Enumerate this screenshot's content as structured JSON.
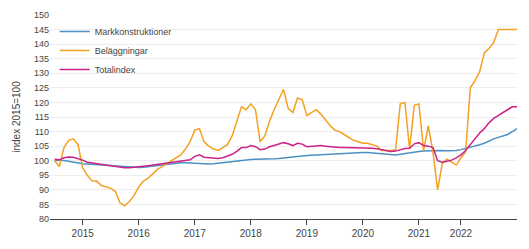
{
  "chart_data": {
    "type": "line",
    "ylabel": "index 2015=100",
    "ylim": [
      80,
      150
    ],
    "yticks": [
      80,
      85,
      90,
      95,
      100,
      105,
      110,
      115,
      120,
      125,
      130,
      135,
      140,
      145,
      150
    ],
    "grid": true,
    "legend": "upper left",
    "categories": [
      null,
      null,
      null,
      null,
      null,
      null,
      "2015",
      null,
      null,
      null,
      null,
      null,
      null,
      null,
      null,
      null,
      null,
      null,
      "2016",
      null,
      null,
      null,
      null,
      null,
      null,
      null,
      null,
      null,
      null,
      null,
      "2017",
      null,
      null,
      null,
      null,
      null,
      null,
      null,
      null,
      null,
      null,
      null,
      "2018",
      null,
      null,
      null,
      null,
      null,
      null,
      null,
      null,
      null,
      null,
      null,
      "2019",
      null,
      null,
      null,
      null,
      null,
      null,
      null,
      null,
      null,
      null,
      null,
      "2020",
      null,
      null,
      null,
      null,
      null,
      null,
      null,
      null,
      null,
      null,
      null,
      "2021",
      null,
      null,
      null,
      null,
      null,
      null,
      null,
      null,
      "2022",
      null,
      null,
      null,
      null,
      null,
      null,
      null,
      null,
      null,
      null,
      null,
      null
    ],
    "series": [
      {
        "name": "Markkonstruktioner",
        "color": "#4a90c4",
        "values": [
          100.0,
          100.2,
          100.1,
          99.8,
          99.5,
          99.2,
          99.0,
          98.9,
          98.8,
          98.7,
          98.6,
          98.5,
          98.4,
          98.3,
          98.1,
          97.9,
          97.8,
          97.7,
          97.7,
          97.8,
          98.0,
          98.2,
          98.5,
          98.7,
          98.9,
          99.1,
          99.2,
          99.3,
          99.3,
          99.2,
          99.1,
          99.0,
          98.9,
          98.9,
          99.0,
          99.2,
          99.4,
          99.6,
          99.8,
          100.0,
          100.1,
          100.3,
          100.4,
          100.5,
          100.5,
          100.6,
          100.6,
          100.7,
          100.8,
          101.0,
          101.2,
          101.3,
          101.5,
          101.7,
          101.8,
          101.9,
          102.0,
          102.1,
          102.2,
          102.3,
          102.4,
          102.5,
          102.6,
          102.7,
          102.7,
          102.8,
          102.8,
          102.8,
          102.7,
          102.6,
          102.5,
          102.3,
          102.1,
          102.0,
          102.2,
          102.5,
          102.8,
          103.0,
          103.2,
          103.3,
          103.4,
          103.5,
          103.5,
          103.5,
          103.4,
          103.4,
          103.5,
          103.8,
          104.2,
          104.5,
          105.0,
          105.5,
          106.0,
          106.8,
          107.5,
          108.0,
          108.5,
          109.0,
          110.0,
          111.0
        ]
      },
      {
        "name": "Beläggningar",
        "color": "#f4a020",
        "values": [
          100.0,
          98.0,
          104.5,
          107.0,
          107.5,
          105.5,
          97.5,
          95.0,
          93.0,
          93.0,
          91.5,
          91.0,
          90.5,
          89.5,
          85.5,
          84.5,
          86.0,
          88.0,
          91.0,
          93.0,
          94.0,
          95.5,
          97.0,
          98.0,
          99.0,
          100.0,
          101.0,
          102.0,
          104.0,
          106.5,
          110.5,
          111.0,
          106.5,
          105.0,
          104.0,
          103.5,
          104.5,
          105.5,
          108.5,
          113.5,
          118.5,
          117.5,
          119.5,
          117.5,
          106.5,
          108.5,
          113.5,
          117.5,
          121.0,
          124.5,
          118.0,
          116.5,
          121.5,
          121.0,
          115.5,
          116.5,
          117.5,
          116.0,
          114.0,
          112.0,
          110.5,
          110.0,
          109.0,
          108.0,
          107.0,
          106.5,
          106.0,
          106.0,
          105.5,
          105.0,
          103.5,
          103.5,
          103.5,
          103.8,
          119.5,
          120.0,
          104.0,
          119.0,
          119.5,
          103.5,
          112.0,
          103.0,
          90.0,
          99.0,
          100.5,
          99.5,
          98.5,
          101.0,
          103.0,
          125.0,
          127.5,
          130.5,
          137.0,
          138.5,
          140.5,
          145.0,
          145.0,
          145.0,
          145.0,
          145.0
        ]
      },
      {
        "name": "Totalindex",
        "color": "#cc2288",
        "values": [
          100.5,
          100.3,
          101.0,
          101.3,
          101.2,
          100.8,
          100.2,
          99.5,
          99.2,
          98.9,
          98.7,
          98.5,
          98.3,
          98.0,
          97.8,
          97.6,
          97.6,
          97.7,
          97.9,
          98.1,
          98.3,
          98.5,
          98.8,
          99.0,
          99.2,
          99.4,
          99.6,
          99.8,
          100.0,
          100.3,
          101.5,
          102.0,
          101.2,
          101.0,
          100.9,
          100.8,
          101.0,
          101.5,
          102.2,
          103.2,
          104.5,
          104.5,
          105.2,
          104.8,
          103.8,
          104.0,
          104.8,
          105.2,
          105.8,
          106.2,
          105.8,
          105.2,
          106.0,
          105.7,
          104.8,
          105.0,
          105.2,
          105.2,
          105.0,
          104.8,
          104.6,
          104.5,
          104.5,
          104.5,
          104.5,
          104.5,
          104.5,
          104.5,
          104.3,
          104.1,
          103.8,
          103.5,
          103.2,
          103.3,
          103.8,
          104.2,
          104.3,
          105.8,
          106.2,
          105.2,
          105.0,
          104.5,
          100.0,
          99.5,
          99.8,
          100.2,
          101.0,
          102.0,
          103.5,
          105.5,
          107.5,
          109.5,
          111.0,
          113.0,
          114.5,
          115.5,
          116.5,
          117.5,
          118.5,
          118.5
        ]
      }
    ]
  }
}
